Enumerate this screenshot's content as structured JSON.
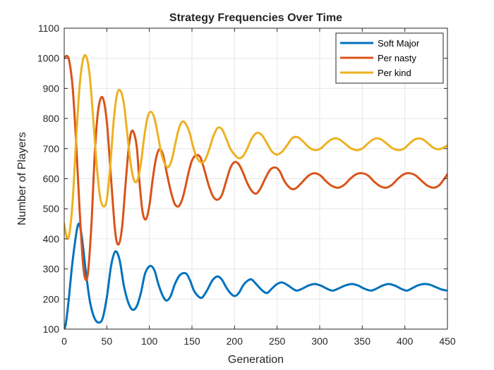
{
  "chart_data": {
    "type": "line",
    "title": "Strategy Frequencies Over Time",
    "xlabel": "Generation",
    "ylabel": "Number of Players",
    "xlim": [
      0,
      450
    ],
    "ylim": [
      100,
      1100
    ],
    "xticks": [
      0,
      50,
      100,
      150,
      200,
      250,
      300,
      350,
      400,
      450
    ],
    "yticks": [
      100,
      200,
      300,
      400,
      500,
      600,
      700,
      800,
      900,
      1000,
      1100
    ],
    "grid": true,
    "legend_position": "top-right",
    "series": [
      {
        "name": "Soft Major",
        "color": "#0072BD",
        "x": [
          0,
          2,
          5,
          10,
          16,
          20,
          25,
          30,
          35,
          40,
          45,
          50,
          55,
          60,
          65,
          70,
          75,
          80,
          85,
          90,
          95,
          101,
          106,
          110,
          115,
          120,
          125,
          130,
          136,
          143,
          148,
          152,
          157,
          162,
          168,
          174,
          180,
          185,
          190,
          195,
          200,
          205,
          210,
          215,
          220,
          226,
          232,
          238,
          244,
          250,
          256,
          263,
          268,
          273,
          280,
          287,
          294,
          301,
          308,
          315,
          322,
          330,
          338,
          345,
          352,
          360,
          367,
          374,
          381,
          388,
          395,
          402,
          408,
          415,
          422,
          429,
          436,
          443,
          450
        ],
        "y": [
          100,
          120,
          190,
          330,
          445,
          420,
          300,
          195,
          140,
          122,
          135,
          205,
          310,
          358,
          330,
          245,
          190,
          165,
          175,
          220,
          285,
          310,
          295,
          255,
          215,
          195,
          210,
          250,
          280,
          285,
          260,
          230,
          210,
          205,
          230,
          262,
          275,
          265,
          240,
          220,
          210,
          220,
          245,
          260,
          265,
          248,
          230,
          220,
          235,
          250,
          255,
          245,
          235,
          228,
          235,
          245,
          250,
          245,
          235,
          228,
          235,
          245,
          250,
          245,
          235,
          228,
          235,
          245,
          250,
          245,
          235,
          228,
          235,
          245,
          250,
          248,
          240,
          232,
          228
        ]
      },
      {
        "name": "Per nasty",
        "color": "#D95319",
        "x": [
          0,
          3,
          6,
          10,
          14,
          18,
          22,
          25,
          28,
          32,
          36,
          40,
          45,
          50,
          55,
          60,
          64,
          68,
          72,
          76,
          80,
          85,
          88,
          92,
          96,
          100,
          104,
          108,
          112,
          116,
          120,
          125,
          130,
          135,
          140,
          146,
          150,
          155,
          160,
          165,
          170,
          175,
          180,
          185,
          190,
          195,
          200,
          205,
          210,
          215,
          220,
          225,
          230,
          236,
          242,
          248,
          253,
          258,
          263,
          268,
          273,
          280,
          287,
          294,
          301,
          308,
          315,
          322,
          329,
          336,
          343,
          350,
          357,
          364,
          371,
          378,
          385,
          392,
          399,
          406,
          413,
          420,
          427,
          434,
          441,
          450
        ],
        "y": [
          1000,
          1008,
          990,
          900,
          720,
          500,
          320,
          265,
          290,
          450,
          690,
          830,
          870,
          790,
          600,
          420,
          382,
          440,
          580,
          710,
          760,
          710,
          600,
          490,
          465,
          510,
          600,
          670,
          698,
          680,
          625,
          560,
          515,
          510,
          545,
          620,
          660,
          678,
          670,
          625,
          575,
          540,
          530,
          545,
          590,
          635,
          655,
          648,
          620,
          585,
          560,
          550,
          565,
          600,
          630,
          637,
          625,
          595,
          575,
          565,
          570,
          590,
          610,
          618,
          610,
          590,
          575,
          570,
          580,
          600,
          615,
          618,
          610,
          590,
          575,
          570,
          580,
          600,
          615,
          618,
          610,
          592,
          576,
          570,
          580,
          615
        ]
      },
      {
        "name": "Per kind",
        "color": "#EDB120",
        "x": [
          0,
          3,
          6,
          10,
          14,
          18,
          22,
          26,
          30,
          34,
          38,
          42,
          46,
          50,
          54,
          58,
          62,
          66,
          70,
          74,
          78,
          82,
          86,
          90,
          94,
          98,
          102,
          106,
          110,
          114,
          118,
          122,
          126,
          130,
          134,
          138,
          142,
          147,
          151,
          155,
          160,
          165,
          170,
          175,
          180,
          185,
          190,
          195,
          200,
          205,
          210,
          215,
          220,
          226,
          232,
          238,
          244,
          250,
          256,
          262,
          268,
          274,
          280,
          287,
          294,
          301,
          308,
          315,
          322,
          329,
          336,
          343,
          350,
          357,
          364,
          371,
          378,
          385,
          392,
          399,
          406,
          413,
          420,
          427,
          434,
          441,
          450
        ],
        "y": [
          450,
          405,
          415,
          530,
          730,
          905,
          995,
          1005,
          940,
          800,
          650,
          540,
          508,
          530,
          640,
          790,
          880,
          892,
          850,
          750,
          650,
          595,
          595,
          650,
          740,
          805,
          822,
          800,
          745,
          685,
          650,
          638,
          660,
          710,
          760,
          788,
          785,
          755,
          710,
          675,
          655,
          660,
          695,
          740,
          768,
          765,
          735,
          700,
          680,
          668,
          675,
          700,
          732,
          752,
          745,
          718,
          690,
          680,
          690,
          712,
          735,
          738,
          725,
          705,
          695,
          700,
          718,
          732,
          732,
          718,
          702,
          695,
          700,
          718,
          732,
          732,
          718,
          702,
          695,
          700,
          718,
          732,
          732,
          718,
          702,
          698,
          710
        ]
      }
    ]
  }
}
